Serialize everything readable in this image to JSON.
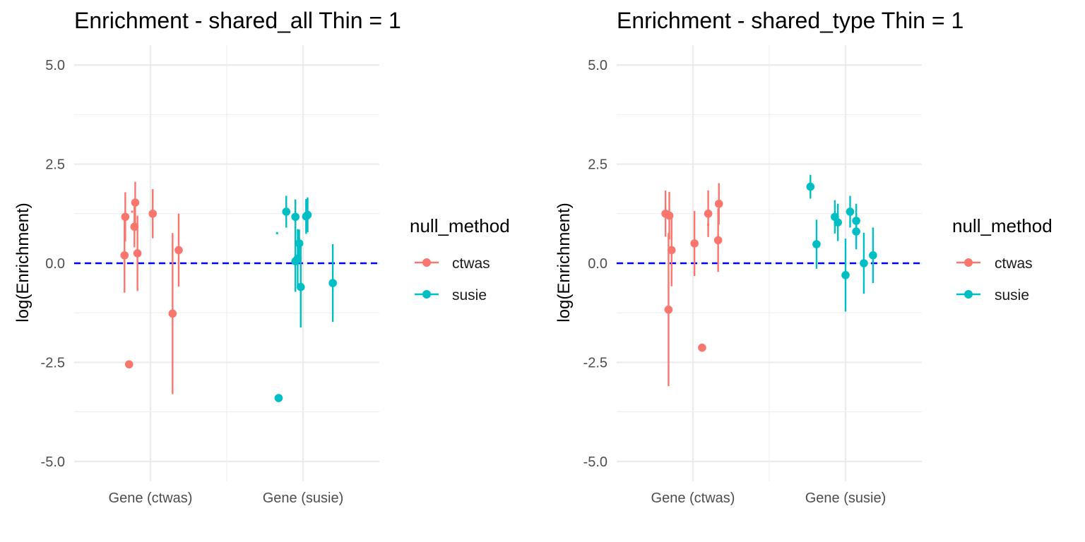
{
  "chart_data": [
    {
      "type": "scatter",
      "title": "Enrichment - shared_all Thin = 1",
      "xlabel": "",
      "ylabel": "log(Enrichment)",
      "categories": [
        "Gene (ctwas)",
        "Gene (susie)"
      ],
      "y_ticks": [
        "5.0",
        "2.5",
        "0.0",
        "-2.5",
        "-5.0"
      ],
      "ylim": [
        -5.5,
        5.5
      ],
      "reference_line": 0,
      "legend": {
        "title": "null_method",
        "position": "right",
        "entries": [
          "ctwas",
          "susie"
        ]
      },
      "series": [
        {
          "name": "ctwas",
          "color": "#F8766D",
          "points": [
            {
              "x": 0.83,
              "y": 0.2,
              "low": -0.74,
              "high": 1.14
            },
            {
              "x": 0.835,
              "y": 1.17,
              "low": 0.55,
              "high": 1.79
            },
            {
              "x": 0.86,
              "y": -2.55,
              "low": null,
              "high": null
            },
            {
              "x": 0.88,
              "y": 1.3,
              "low": null,
              "high": null
            },
            {
              "x": 0.895,
              "y": 0.92,
              "low": 0.4,
              "high": 1.45
            },
            {
              "x": 0.9,
              "y": 1.53,
              "low": 1.01,
              "high": 2.05
            },
            {
              "x": 0.915,
              "y": 0.25,
              "low": -0.7,
              "high": 1.2
            },
            {
              "x": 1.015,
              "y": 1.25,
              "low": 0.63,
              "high": 1.87
            },
            {
              "x": 1.145,
              "y": -1.27,
              "low": -3.3,
              "high": 0.76
            },
            {
              "x": 1.185,
              "y": 0.33,
              "low": -0.59,
              "high": 1.25
            }
          ]
        },
        {
          "name": "susie",
          "color": "#00BFC4",
          "points": [
            {
              "x": 1.83,
              "y": 0.76,
              "low": null,
              "high": null
            },
            {
              "x": 1.84,
              "y": -3.4,
              "low": null,
              "high": null
            },
            {
              "x": 1.89,
              "y": 1.3,
              "low": 0.9,
              "high": 1.7
            },
            {
              "x": 1.95,
              "y": 1.17,
              "low": 0.73,
              "high": 1.61
            },
            {
              "x": 1.95,
              "y": 0.05,
              "low": -0.72,
              "high": 0.82
            },
            {
              "x": 1.965,
              "y": 0.12,
              "low": -0.62,
              "high": 0.86
            },
            {
              "x": 1.975,
              "y": 0.5,
              "low": 0.15,
              "high": 0.85
            },
            {
              "x": 1.985,
              "y": -0.6,
              "low": -1.62,
              "high": 0.42
            },
            {
              "x": 2.02,
              "y": 1.18,
              "low": 0.74,
              "high": 1.62
            },
            {
              "x": 2.03,
              "y": 1.22,
              "low": 0.78,
              "high": 1.66
            },
            {
              "x": 2.195,
              "y": -0.5,
              "low": -1.48,
              "high": 0.48
            }
          ]
        }
      ]
    },
    {
      "type": "scatter",
      "title": "Enrichment - shared_type Thin = 1",
      "xlabel": "",
      "ylabel": "log(Enrichment)",
      "categories": [
        "Gene (ctwas)",
        "Gene (susie)"
      ],
      "y_ticks": [
        "5.0",
        "2.5",
        "0.0",
        "-2.5",
        "-5.0"
      ],
      "ylim": [
        -5.5,
        5.5
      ],
      "reference_line": 0,
      "legend": {
        "title": "null_method",
        "position": "right",
        "entries": [
          "ctwas",
          "susie"
        ]
      },
      "series": [
        {
          "name": "ctwas",
          "color": "#F8766D",
          "points": [
            {
              "x": 0.82,
              "y": 1.25,
              "low": 0.67,
              "high": 1.83
            },
            {
              "x": 0.84,
              "y": -1.17,
              "low": -3.1,
              "high": 0.76
            },
            {
              "x": 0.845,
              "y": 1.2,
              "low": 0.6,
              "high": 1.8
            },
            {
              "x": 0.86,
              "y": 0.33,
              "low": -0.58,
              "high": 1.24
            },
            {
              "x": 1.01,
              "y": 0.5,
              "low": -0.32,
              "high": 1.32
            },
            {
              "x": 1.06,
              "y": -2.13,
              "low": null,
              "high": null
            },
            {
              "x": 1.1,
              "y": 1.25,
              "low": 0.66,
              "high": 1.84
            },
            {
              "x": 1.1,
              "y": 0.97,
              "low": null,
              "high": null
            },
            {
              "x": 1.165,
              "y": 0.58,
              "low": -0.22,
              "high": 1.38
            },
            {
              "x": 1.17,
              "y": 1.5,
              "low": 0.98,
              "high": 2.02
            }
          ]
        },
        {
          "name": "susie",
          "color": "#00BFC4",
          "points": [
            {
              "x": 1.77,
              "y": 1.93,
              "low": 1.63,
              "high": 2.23
            },
            {
              "x": 1.81,
              "y": 0.48,
              "low": -0.14,
              "high": 1.1
            },
            {
              "x": 1.93,
              "y": 1.17,
              "low": 0.75,
              "high": 1.59
            },
            {
              "x": 1.95,
              "y": 1.03,
              "low": 0.56,
              "high": 1.5
            },
            {
              "x": 2.0,
              "y": -0.3,
              "low": -1.22,
              "high": 0.62
            },
            {
              "x": 2.03,
              "y": 1.3,
              "low": 0.9,
              "high": 1.7
            },
            {
              "x": 2.07,
              "y": 1.07,
              "low": 0.64,
              "high": 1.5
            },
            {
              "x": 2.07,
              "y": 0.8,
              "low": 0.35,
              "high": 1.25
            },
            {
              "x": 2.12,
              "y": 0.0,
              "low": -0.77,
              "high": 0.77
            },
            {
              "x": 2.18,
              "y": 0.2,
              "low": -0.5,
              "high": 0.9
            }
          ]
        }
      ]
    }
  ]
}
